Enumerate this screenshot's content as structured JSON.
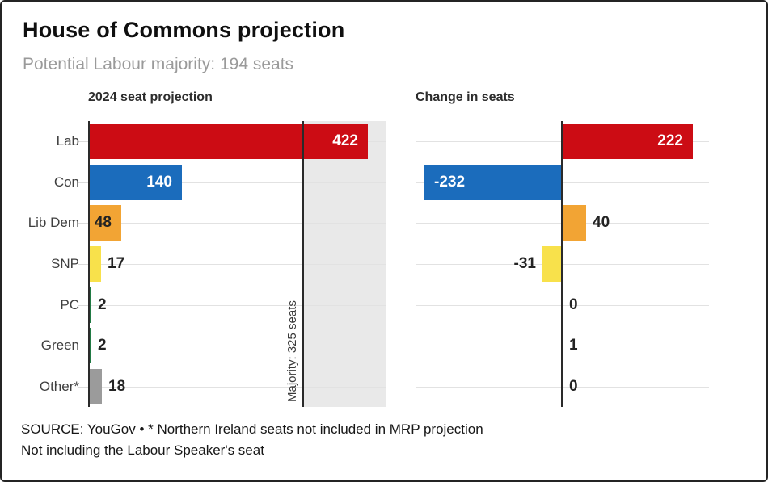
{
  "header": {
    "title": "House of Commons projection",
    "subtitle": "Potential Labour majority: 194 seats"
  },
  "chart_data": [
    {
      "type": "bar",
      "orientation": "horizontal",
      "title": "2024 seat projection",
      "categories": [
        "Lab",
        "Con",
        "Lib Dem",
        "SNP",
        "PC",
        "Green",
        "Other*"
      ],
      "values": [
        422,
        140,
        48,
        17,
        2,
        2,
        18
      ],
      "bar_colors": [
        "#cc0c14",
        "#1b6cbc",
        "#f2a434",
        "#f8e14b",
        "#217a44",
        "#217a44",
        "#9b9b9b"
      ],
      "xlim": [
        0,
        451
      ],
      "grid": true,
      "legend": "none",
      "majority_line": {
        "value": 325,
        "label": "Majority: 325 seats"
      }
    },
    {
      "type": "bar",
      "orientation": "horizontal",
      "title": "Change in seats",
      "categories": [
        "Lab",
        "Con",
        "Lib Dem",
        "SNP",
        "PC",
        "Green",
        "Other*"
      ],
      "values": [
        222,
        -232,
        40,
        -31,
        0,
        1,
        0
      ],
      "bar_colors": [
        "#cc0c14",
        "#1b6cbc",
        "#f2a434",
        "#f8e14b",
        "#217a44",
        "#217a44",
        "#9b9b9b"
      ],
      "xlim": [
        -249,
        250
      ],
      "grid": true,
      "legend": "none"
    }
  ],
  "footer": {
    "line1": "SOURCE: YouGov • * Northern Ireland seats not included in MRP projection",
    "line2": "Not including the Labour Speaker's seat"
  },
  "colors": {
    "labour_red": "#cc0c14",
    "conservative_blue": "#1b6cbc",
    "libdem_orange": "#f2a434",
    "snp_yellow": "#f8e14b",
    "plaid_green": "#217a44",
    "other_grey": "#9b9b9b",
    "majority_shade": "#e9e9e9",
    "gridline": "#e2e2e2",
    "tick": "#dcdcdc",
    "axis": "#2a2a2a",
    "value_dark": "#232323",
    "value_light": "#ffffff",
    "subtitle_grey": "#9a9a9a"
  }
}
